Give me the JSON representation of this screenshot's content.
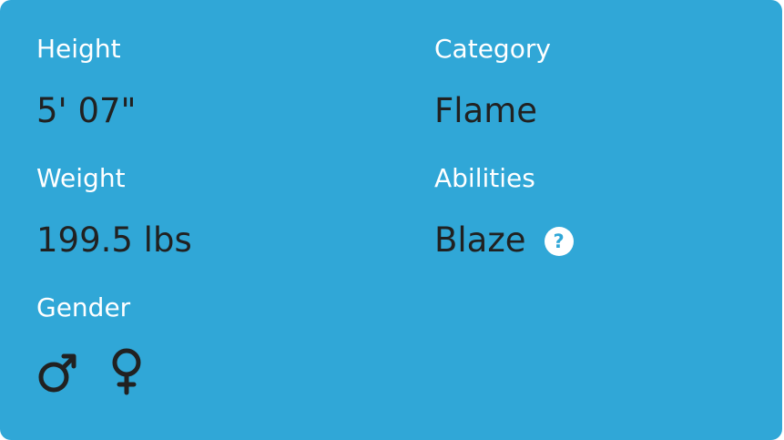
{
  "attributes": {
    "height": {
      "label": "Height",
      "value": "5' 07\""
    },
    "weight": {
      "label": "Weight",
      "value": "199.5 lbs"
    },
    "gender": {
      "label": "Gender",
      "options": [
        {
          "icon": "male-icon"
        },
        {
          "icon": "female-icon"
        }
      ]
    },
    "category": {
      "label": "Category",
      "value": "Flame"
    },
    "abilities": {
      "label": "Abilities",
      "value": "Blaze",
      "help_glyph": "?"
    }
  },
  "colors": {
    "card_background": "#30a7d7",
    "label_text": "#ffffff",
    "value_text": "#212121"
  }
}
